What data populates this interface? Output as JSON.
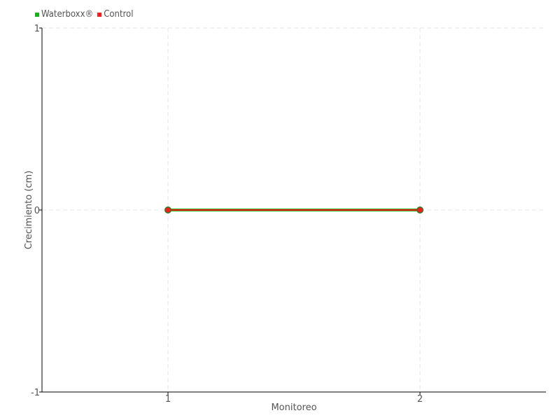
{
  "chart_data": {
    "type": "line",
    "xlabel": "Monitoreo",
    "ylabel": "Crecimiento (cm)",
    "x": [
      1,
      2
    ],
    "xticks": [
      "1",
      "2"
    ],
    "yticks": [
      "1",
      "0",
      "-1"
    ],
    "xlim": [
      0.5,
      2.5
    ],
    "ylim": [
      -1,
      1
    ],
    "grid": true,
    "legend_position": "top-left",
    "series": [
      {
        "name": "Waterboxx®",
        "color": "#1aaf1a",
        "values": [
          0,
          0
        ]
      },
      {
        "name": "Control",
        "color": "#ff1a1a",
        "values": [
          0,
          0
        ]
      }
    ]
  }
}
